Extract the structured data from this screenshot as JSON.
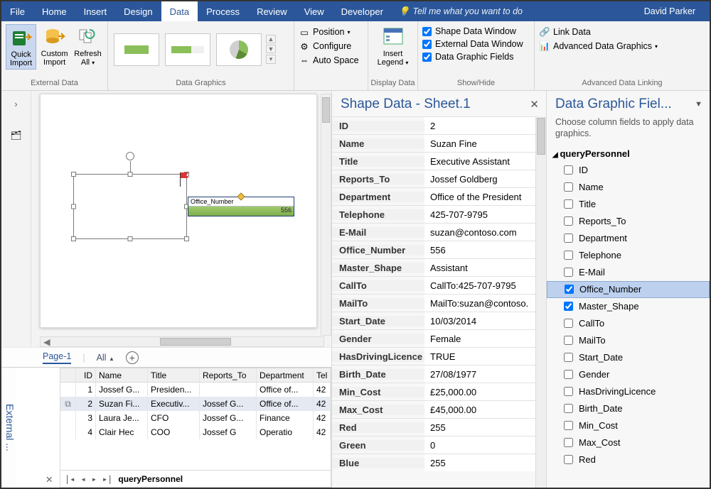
{
  "menubar": {
    "tabs": [
      "File",
      "Home",
      "Insert",
      "Design",
      "Data",
      "Process",
      "Review",
      "View",
      "Developer"
    ],
    "active_index": 4,
    "tell_me": "Tell me what you want to do",
    "user": "David Parker"
  },
  "ribbon": {
    "external_data": {
      "label": "External Data",
      "quick_import": "Quick Import",
      "custom_import": "Custom Import",
      "refresh_all": "Refresh All"
    },
    "data_graphics": {
      "label": "Data Graphics"
    },
    "position": "Position",
    "configure": "Configure",
    "auto_space": "Auto Space",
    "display_data": {
      "label": "Display Data",
      "insert_legend": "Insert Legend"
    },
    "show_hide": {
      "label": "Show/Hide",
      "shape_data_window": "Shape Data Window",
      "external_data_window": "External Data Window",
      "data_graphic_fields": "Data Graphic Fields",
      "checks": [
        true,
        true,
        true
      ]
    },
    "advanced": {
      "label": "Advanced Data Linking",
      "link_data": "Link Data",
      "adv_graphics": "Advanced Data Graphics"
    }
  },
  "canvas": {
    "page_tab": "Page-1",
    "all": "All",
    "callout_label": "Office_Number",
    "callout_value": "556"
  },
  "shape_data": {
    "title": "Shape Data - Sheet.1",
    "rows": [
      {
        "k": "ID",
        "v": "2"
      },
      {
        "k": "Name",
        "v": "Suzan Fine"
      },
      {
        "k": "Title",
        "v": "Executive Assistant"
      },
      {
        "k": "Reports_To",
        "v": "Jossef Goldberg"
      },
      {
        "k": "Department",
        "v": "Office of the President"
      },
      {
        "k": "Telephone",
        "v": "425-707-9795"
      },
      {
        "k": "E-Mail",
        "v": "suzan@contoso.com"
      },
      {
        "k": "Office_Number",
        "v": "556"
      },
      {
        "k": "Master_Shape",
        "v": "Assistant"
      },
      {
        "k": "CallTo",
        "v": "CallTo:425-707-9795"
      },
      {
        "k": "MailTo",
        "v": "MailTo:suzan@contoso."
      },
      {
        "k": "Start_Date",
        "v": "10/03/2014"
      },
      {
        "k": "Gender",
        "v": "Female"
      },
      {
        "k": "HasDrivingLicence",
        "v": "TRUE"
      },
      {
        "k": "Birth_Date",
        "v": "27/08/1977"
      },
      {
        "k": "Min_Cost",
        "v": "£25,000.00"
      },
      {
        "k": "Max_Cost",
        "v": "£45,000.00"
      },
      {
        "k": "Red",
        "v": "255"
      },
      {
        "k": "Green",
        "v": "0"
      },
      {
        "k": "Blue",
        "v": "255"
      }
    ]
  },
  "dg_panel": {
    "title": "Data Graphic Fiel...",
    "subtitle": "Choose column fields to apply data graphics.",
    "group": "queryPersonnel",
    "items": [
      {
        "label": "ID",
        "checked": false
      },
      {
        "label": "Name",
        "checked": false
      },
      {
        "label": "Title",
        "checked": false
      },
      {
        "label": "Reports_To",
        "checked": false
      },
      {
        "label": "Department",
        "checked": false
      },
      {
        "label": "Telephone",
        "checked": false
      },
      {
        "label": "E-Mail",
        "checked": false
      },
      {
        "label": "Office_Number",
        "checked": true,
        "selected": true
      },
      {
        "label": "Master_Shape",
        "checked": true
      },
      {
        "label": "CallTo",
        "checked": false
      },
      {
        "label": "MailTo",
        "checked": false
      },
      {
        "label": "Start_Date",
        "checked": false
      },
      {
        "label": "Gender",
        "checked": false
      },
      {
        "label": "HasDrivingLicence",
        "checked": false
      },
      {
        "label": "Birth_Date",
        "checked": false
      },
      {
        "label": "Min_Cost",
        "checked": false
      },
      {
        "label": "Max_Cost",
        "checked": false
      },
      {
        "label": "Red",
        "checked": false
      }
    ]
  },
  "ext_data": {
    "label": "External ...",
    "columns": [
      "ID",
      "Name",
      "Title",
      "Reports_To",
      "Department",
      "Tel"
    ],
    "rows": [
      {
        "link": false,
        "id": "1",
        "name": "Jossef G...",
        "title": "Presiden...",
        "rep": "",
        "dep": "Office of...",
        "tel": "42"
      },
      {
        "link": true,
        "id": "2",
        "name": "Suzan Fi...",
        "title": "Executiv...",
        "rep": "Jossef G...",
        "dep": "Office of...",
        "tel": "42",
        "selected": true
      },
      {
        "link": false,
        "id": "3",
        "name": "Laura Je...",
        "title": "CFO",
        "rep": "Jossef G...",
        "dep": "Finance",
        "tel": "42"
      },
      {
        "link": false,
        "id": "4",
        "name": "Clair Hec",
        "title": "COO",
        "rep": "Jossef G",
        "dep": "Operatio",
        "tel": "42"
      }
    ],
    "recordset": "queryPersonnel"
  }
}
